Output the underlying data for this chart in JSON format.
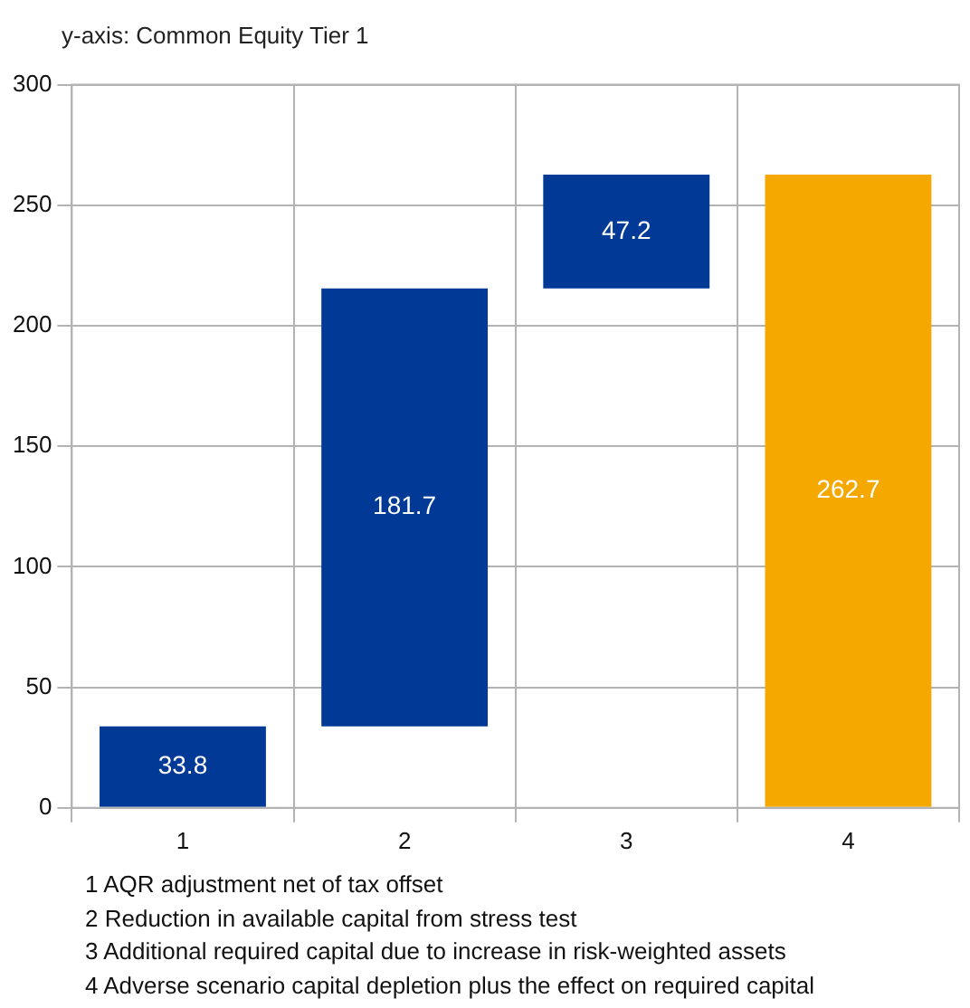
{
  "chart_data": {
    "type": "bar",
    "ylabel": "y-axis: Common Equity Tier 1",
    "categories": [
      "1",
      "2",
      "3",
      "4"
    ],
    "values": [
      33.8,
      181.7,
      47.2,
      262.7
    ],
    "base": [
      0,
      33.8,
      215.5,
      0
    ],
    "colors": [
      "#003a96",
      "#003a96",
      "#003a96",
      "#f5a800"
    ],
    "ylim": [
      0,
      300
    ],
    "yticks": [
      0,
      50,
      100,
      150,
      200,
      250,
      300
    ],
    "grid": true,
    "data_labels": true,
    "legend": false,
    "annotations": [
      "1 AQR adjustment net of tax offset",
      "2 Reduction in available capital from stress test",
      "3 Additional required capital due to increase in risk-weighted assets",
      "4 Adverse scenario capital depletion plus the effect on required capital"
    ]
  }
}
